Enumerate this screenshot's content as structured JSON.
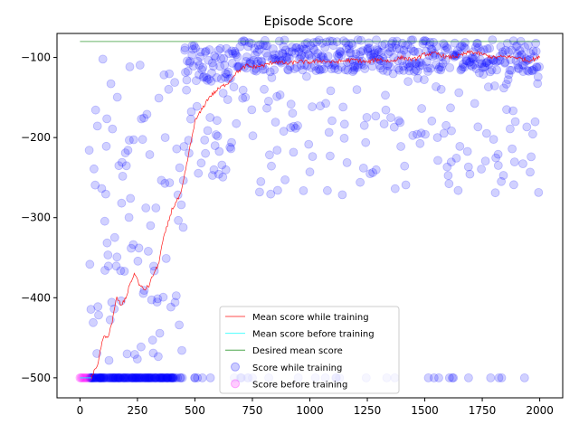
{
  "chart_data": {
    "type": "scatter",
    "title": "Episode Score",
    "xlabel": "",
    "ylabel": "",
    "xlim": [
      -100,
      2100
    ],
    "ylim": [
      -525,
      -70
    ],
    "xticks": [
      0,
      250,
      500,
      750,
      1000,
      1250,
      1500,
      1750,
      2000
    ],
    "yticks": [
      -500,
      -400,
      -300,
      -200,
      -100
    ],
    "legend_position": "lower-center",
    "grid": false,
    "series": [
      {
        "name": "Mean score while training",
        "kind": "line",
        "color": "#ff0000",
        "x": [
          50,
          80,
          100,
          120,
          140,
          160,
          180,
          200,
          220,
          240,
          260,
          280,
          300,
          320,
          340,
          360,
          380,
          400,
          420,
          440,
          460,
          480,
          500,
          520,
          540,
          560,
          580,
          600,
          625,
          650,
          675,
          700,
          725,
          750,
          800,
          850,
          900,
          950,
          1000,
          1050,
          1100,
          1150,
          1200,
          1250,
          1300,
          1350,
          1400,
          1450,
          1500,
          1550,
          1600,
          1650,
          1700,
          1750,
          1800,
          1850,
          1900,
          1950,
          2000
        ],
        "y": [
          -500,
          -480,
          -450,
          -450,
          -430,
          -400,
          -410,
          -400,
          -380,
          -370,
          -385,
          -390,
          -385,
          -370,
          -360,
          -330,
          -310,
          -290,
          -280,
          -270,
          -240,
          -210,
          -180,
          -170,
          -160,
          -150,
          -145,
          -140,
          -135,
          -130,
          -120,
          -115,
          -110,
          -112,
          -110,
          -105,
          -108,
          -105,
          -106,
          -104,
          -106,
          -104,
          -103,
          -106,
          -102,
          -105,
          -100,
          -103,
          -96,
          -95,
          -100,
          -98,
          -93,
          -96,
          -100,
          -99,
          -100,
          -104,
          -100
        ]
      },
      {
        "name": "Mean score before training",
        "kind": "line",
        "color": "#00ffff",
        "x": [
          0,
          50
        ],
        "y": [
          -500,
          -500
        ]
      },
      {
        "name": "Desired mean score",
        "kind": "line",
        "color": "#008000",
        "x": [
          0,
          2000
        ],
        "y": [
          -80,
          -80
        ]
      },
      {
        "name": "Score while training",
        "kind": "scatter",
        "color": "#0000ff"
      },
      {
        "name": "Score before training",
        "kind": "scatter",
        "color": "#ff00ff",
        "x": [
          0,
          5,
          10,
          15,
          20,
          25,
          30,
          35
        ],
        "y": [
          -500,
          -500,
          -500,
          -500,
          -500,
          -500,
          -500,
          -500
        ]
      }
    ]
  }
}
